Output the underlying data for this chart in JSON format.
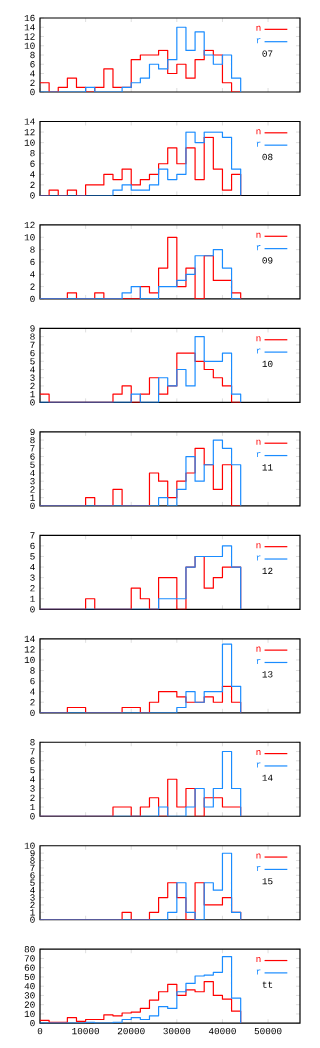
{
  "chart_data": [
    {
      "type": "histogram",
      "bins": [
        0,
        2000,
        4000,
        6000,
        8000,
        10000,
        12000,
        14000,
        16000,
        18000,
        20000,
        22000,
        24000,
        26000,
        28000,
        30000,
        32000,
        34000,
        36000,
        38000,
        40000,
        42000,
        44000
      ],
      "xlim": [
        0,
        57000
      ],
      "xticks": [
        0,
        10000,
        20000,
        30000,
        40000,
        50000
      ],
      "ylim": [
        0,
        16
      ],
      "yticks": [
        0,
        2,
        4,
        6,
        8,
        10,
        12,
        14,
        16
      ],
      "tick_labels": "y",
      "legend": "top right",
      "annotations": [
        "07"
      ],
      "series": [
        {
          "name": "n",
          "color": "#ff0000",
          "values": [
            2,
            0,
            1,
            3,
            1,
            0,
            1,
            5,
            1,
            1,
            7,
            8,
            8,
            9,
            4,
            6,
            3,
            7,
            9,
            8,
            2,
            0
          ]
        },
        {
          "name": "r",
          "color": "#1a8cff",
          "values": [
            0,
            0,
            0,
            0,
            0,
            1,
            0,
            0,
            0,
            1,
            2,
            3,
            6,
            5,
            7,
            14,
            9,
            13,
            8,
            6,
            8,
            3
          ]
        }
      ]
    },
    {
      "type": "histogram",
      "bins": [
        0,
        2000,
        4000,
        6000,
        8000,
        10000,
        12000,
        14000,
        16000,
        18000,
        20000,
        22000,
        24000,
        26000,
        28000,
        30000,
        32000,
        34000,
        36000,
        38000,
        40000,
        42000,
        44000
      ],
      "xlim": [
        0,
        57000
      ],
      "xticks": [
        0,
        10000,
        20000,
        30000,
        40000,
        50000
      ],
      "ylim": [
        0,
        14
      ],
      "yticks": [
        0,
        2,
        4,
        6,
        8,
        10,
        12,
        14
      ],
      "tick_labels": "y",
      "legend": "top right",
      "annotations": [
        "08"
      ],
      "series": [
        {
          "name": "n",
          "color": "#ff0000",
          "values": [
            0,
            1,
            0,
            1,
            0,
            2,
            2,
            4,
            3,
            5,
            2,
            3,
            4,
            6,
            9,
            6,
            9,
            3,
            11,
            5,
            1,
            4
          ]
        },
        {
          "name": "r",
          "color": "#1a8cff",
          "values": [
            0,
            0,
            0,
            0,
            0,
            0,
            0,
            0,
            1,
            2,
            1,
            1,
            2,
            5,
            3,
            4,
            12,
            10,
            12,
            12,
            11,
            5
          ]
        }
      ]
    },
    {
      "type": "histogram",
      "bins": [
        0,
        2000,
        4000,
        6000,
        8000,
        10000,
        12000,
        14000,
        16000,
        18000,
        20000,
        22000,
        24000,
        26000,
        28000,
        30000,
        32000,
        34000,
        36000,
        38000,
        40000,
        42000,
        44000
      ],
      "xlim": [
        0,
        57000
      ],
      "xticks": [
        0,
        10000,
        20000,
        30000,
        40000,
        50000
      ],
      "ylim": [
        0,
        12
      ],
      "yticks": [
        0,
        2,
        4,
        6,
        8,
        10,
        12
      ],
      "tick_labels": "y",
      "legend": "top right",
      "annotations": [
        "09"
      ],
      "series": [
        {
          "name": "n",
          "color": "#ff0000",
          "values": [
            0,
            0,
            0,
            1,
            0,
            0,
            1,
            0,
            0,
            0,
            0,
            2,
            1,
            5,
            10,
            2,
            5,
            0,
            7,
            3,
            3,
            1
          ]
        },
        {
          "name": "r",
          "color": "#1a8cff",
          "values": [
            0,
            0,
            0,
            0,
            0,
            0,
            0,
            0,
            0,
            1,
            2,
            0,
            0,
            2,
            2,
            3,
            4,
            7,
            7,
            8,
            5,
            0
          ]
        }
      ]
    },
    {
      "type": "histogram",
      "bins": [
        0,
        2000,
        4000,
        6000,
        8000,
        10000,
        12000,
        14000,
        16000,
        18000,
        20000,
        22000,
        24000,
        26000,
        28000,
        30000,
        32000,
        34000,
        36000,
        38000,
        40000,
        42000,
        44000
      ],
      "xlim": [
        0,
        57000
      ],
      "xticks": [
        0,
        10000,
        20000,
        30000,
        40000,
        50000
      ],
      "ylim": [
        0,
        9
      ],
      "yticks": [
        0,
        1,
        2,
        3,
        4,
        5,
        6,
        7,
        8,
        9
      ],
      "tick_labels": "y",
      "legend": "top right",
      "annotations": [
        "10"
      ],
      "series": [
        {
          "name": "n",
          "color": "#ff0000",
          "values": [
            1,
            0,
            0,
            0,
            0,
            0,
            0,
            0,
            1,
            2,
            0,
            1,
            3,
            1,
            2,
            6,
            6,
            5,
            4,
            3,
            2,
            0
          ]
        },
        {
          "name": "r",
          "color": "#1a8cff",
          "values": [
            0,
            0,
            0,
            0,
            0,
            0,
            0,
            0,
            0,
            0,
            1,
            0,
            0,
            3,
            2,
            4,
            2,
            8,
            5,
            5,
            6,
            1
          ]
        }
      ]
    },
    {
      "type": "histogram",
      "bins": [
        0,
        2000,
        4000,
        6000,
        8000,
        10000,
        12000,
        14000,
        16000,
        18000,
        20000,
        22000,
        24000,
        26000,
        28000,
        30000,
        32000,
        34000,
        36000,
        38000,
        40000,
        42000,
        44000
      ],
      "xlim": [
        0,
        57000
      ],
      "xticks": [
        0,
        10000,
        20000,
        30000,
        40000,
        50000
      ],
      "ylim": [
        0,
        9
      ],
      "yticks": [
        0,
        1,
        2,
        3,
        4,
        5,
        6,
        7,
        8,
        9
      ],
      "tick_labels": "y",
      "legend": "top right",
      "annotations": [
        "11"
      ],
      "series": [
        {
          "name": "n",
          "color": "#ff0000",
          "values": [
            0,
            0,
            0,
            0,
            0,
            1,
            0,
            0,
            2,
            0,
            0,
            0,
            4,
            3,
            1,
            3,
            4,
            7,
            5,
            2,
            5,
            0
          ]
        },
        {
          "name": "r",
          "color": "#1a8cff",
          "values": [
            0,
            0,
            0,
            0,
            0,
            0,
            0,
            0,
            0,
            0,
            0,
            0,
            0,
            1,
            0,
            2,
            6,
            3,
            5,
            8,
            7,
            5
          ]
        }
      ]
    },
    {
      "type": "histogram",
      "bins": [
        0,
        2000,
        4000,
        6000,
        8000,
        10000,
        12000,
        14000,
        16000,
        18000,
        20000,
        22000,
        24000,
        26000,
        28000,
        30000,
        32000,
        34000,
        36000,
        38000,
        40000,
        42000,
        44000
      ],
      "xlim": [
        0,
        57000
      ],
      "xticks": [
        0,
        10000,
        20000,
        30000,
        40000,
        50000
      ],
      "ylim": [
        0,
        7
      ],
      "yticks": [
        0,
        1,
        2,
        3,
        4,
        5,
        6,
        7
      ],
      "tick_labels": "y",
      "legend": "top right",
      "annotations": [
        "12"
      ],
      "series": [
        {
          "name": "n",
          "color": "#ff0000",
          "values": [
            0,
            0,
            0,
            0,
            0,
            1,
            0,
            0,
            0,
            0,
            2,
            1,
            0,
            3,
            3,
            0,
            4,
            5,
            2,
            3,
            4,
            4
          ]
        },
        {
          "name": "r",
          "color": "#1a8cff",
          "values": [
            0,
            0,
            0,
            0,
            0,
            0,
            0,
            0,
            0,
            0,
            0,
            0,
            0,
            1,
            1,
            1,
            4,
            5,
            5,
            5,
            6,
            4
          ]
        }
      ]
    },
    {
      "type": "histogram",
      "bins": [
        0,
        2000,
        4000,
        6000,
        8000,
        10000,
        12000,
        14000,
        16000,
        18000,
        20000,
        22000,
        24000,
        26000,
        28000,
        30000,
        32000,
        34000,
        36000,
        38000,
        40000,
        42000,
        44000
      ],
      "xlim": [
        0,
        57000
      ],
      "xticks": [
        0,
        10000,
        20000,
        30000,
        40000,
        50000
      ],
      "ylim": [
        0,
        14
      ],
      "yticks": [
        0,
        2,
        4,
        6,
        8,
        10,
        12,
        14
      ],
      "tick_labels": "y",
      "legend": "top right",
      "annotations": [
        "13"
      ],
      "series": [
        {
          "name": "n",
          "color": "#ff0000",
          "values": [
            0,
            0,
            0,
            1,
            1,
            0,
            0,
            0,
            0,
            1,
            1,
            0,
            2,
            4,
            4,
            3,
            2,
            2,
            3,
            2,
            5,
            2
          ]
        },
        {
          "name": "r",
          "color": "#1a8cff",
          "values": [
            0,
            0,
            0,
            0,
            0,
            0,
            0,
            0,
            0,
            0,
            0,
            0,
            0,
            0,
            0,
            1,
            4,
            2,
            4,
            4,
            13,
            5
          ]
        }
      ]
    },
    {
      "type": "histogram",
      "bins": [
        0,
        2000,
        4000,
        6000,
        8000,
        10000,
        12000,
        14000,
        16000,
        18000,
        20000,
        22000,
        24000,
        26000,
        28000,
        30000,
        32000,
        34000,
        36000,
        38000,
        40000,
        42000,
        44000
      ],
      "xlim": [
        0,
        57000
      ],
      "xticks": [
        0,
        10000,
        20000,
        30000,
        40000,
        50000
      ],
      "ylim": [
        0,
        8
      ],
      "yticks": [
        0,
        1,
        2,
        3,
        4,
        5,
        6,
        7,
        8
      ],
      "tick_labels": "y",
      "legend": "top right",
      "annotations": [
        "14"
      ],
      "series": [
        {
          "name": "n",
          "color": "#ff0000",
          "values": [
            0,
            0,
            0,
            0,
            0,
            0,
            0,
            0,
            1,
            1,
            0,
            1,
            2,
            0,
            4,
            1,
            3,
            0,
            2,
            2,
            1,
            1
          ]
        },
        {
          "name": "r",
          "color": "#1a8cff",
          "values": [
            0,
            0,
            0,
            0,
            0,
            0,
            0,
            0,
            0,
            0,
            0,
            0,
            0,
            1,
            0,
            0,
            1,
            3,
            1,
            3,
            7,
            3
          ]
        }
      ]
    },
    {
      "type": "histogram",
      "bins": [
        0,
        2000,
        4000,
        6000,
        8000,
        10000,
        12000,
        14000,
        16000,
        18000,
        20000,
        22000,
        24000,
        26000,
        28000,
        30000,
        32000,
        34000,
        36000,
        38000,
        40000,
        42000,
        44000
      ],
      "xlim": [
        0,
        57000
      ],
      "xticks": [
        0,
        10000,
        20000,
        30000,
        40000,
        50000
      ],
      "ylim": [
        0,
        10
      ],
      "yticks": [
        0,
        1,
        2,
        3,
        4,
        5,
        6,
        7,
        8,
        9,
        10
      ],
      "tick_labels": "y",
      "legend": "top right",
      "annotations": [
        "15"
      ],
      "series": [
        {
          "name": "n",
          "color": "#ff0000",
          "values": [
            0,
            0,
            0,
            0,
            0,
            0,
            0,
            0,
            0,
            1,
            0,
            0,
            1,
            3,
            5,
            3,
            0,
            5,
            2,
            2,
            3,
            1
          ]
        },
        {
          "name": "r",
          "color": "#1a8cff",
          "values": [
            0,
            0,
            0,
            0,
            0,
            0,
            0,
            0,
            0,
            0,
            0,
            0,
            0,
            0,
            1,
            5,
            1,
            0,
            5,
            4,
            9,
            1
          ]
        }
      ]
    },
    {
      "type": "histogram",
      "bins": [
        0,
        2000,
        4000,
        6000,
        8000,
        10000,
        12000,
        14000,
        16000,
        18000,
        20000,
        22000,
        24000,
        26000,
        28000,
        30000,
        32000,
        34000,
        36000,
        38000,
        40000,
        42000,
        44000
      ],
      "xlim": [
        0,
        57000
      ],
      "xticks": [
        0,
        10000,
        20000,
        30000,
        40000,
        50000
      ],
      "ylim": [
        0,
        80
      ],
      "yticks": [
        0,
        10,
        20,
        30,
        40,
        50,
        60,
        70,
        80
      ],
      "legend": "top right",
      "annotations": [
        "tt"
      ],
      "series": [
        {
          "name": "n",
          "color": "#ff0000",
          "values": [
            3,
            1,
            1,
            6,
            2,
            4,
            4,
            9,
            8,
            11,
            12,
            16,
            25,
            34,
            42,
            30,
            36,
            34,
            45,
            30,
            26,
            13
          ]
        },
        {
          "name": "r",
          "color": "#1a8cff",
          "values": [
            0,
            0,
            0,
            0,
            0,
            1,
            0,
            0,
            1,
            4,
            6,
            4,
            8,
            18,
            16,
            34,
            43,
            51,
            52,
            55,
            72,
            27
          ]
        }
      ]
    }
  ]
}
